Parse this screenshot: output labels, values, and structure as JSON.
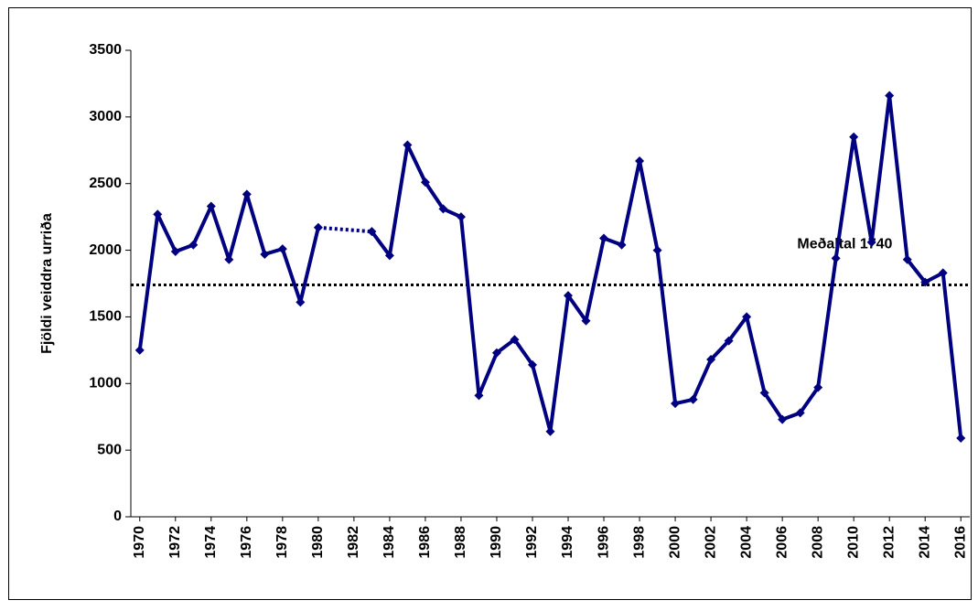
{
  "chart_data": {
    "type": "line",
    "y_label": "Fjöldi veiddra urriða",
    "x": [
      1970,
      1971,
      1972,
      1973,
      1974,
      1975,
      1976,
      1977,
      1978,
      1979,
      1980,
      1981,
      1982,
      1983,
      1984,
      1985,
      1986,
      1987,
      1988,
      1989,
      1990,
      1991,
      1992,
      1993,
      1994,
      1995,
      1996,
      1997,
      1998,
      1999,
      2000,
      2001,
      2002,
      2003,
      2004,
      2005,
      2006,
      2007,
      2008,
      2009,
      2010,
      2011,
      2012,
      2013,
      2014,
      2015,
      2016
    ],
    "series": [
      {
        "color": "#000080",
        "values": [
          1250,
          2270,
          1990,
          2040,
          2330,
          1930,
          2420,
          1970,
          2010,
          1610,
          2170,
          null,
          null,
          2140,
          1960,
          2790,
          2510,
          2310,
          2250,
          910,
          1230,
          1330,
          1140,
          640,
          1660,
          1470,
          2090,
          2040,
          2670,
          2000,
          850,
          880,
          1180,
          1320,
          1500,
          930,
          730,
          780,
          970,
          1940,
          2850,
          2060,
          3160,
          1930,
          1760,
          1830,
          590
        ]
      }
    ],
    "connect_gaps": "dotted",
    "reference_line": {
      "value": 1740,
      "label": "Meðaltal 1740"
    },
    "xlim": [
      1969.5,
      2016.5
    ],
    "xticks": [
      1970,
      1972,
      1974,
      1976,
      1978,
      1980,
      1982,
      1984,
      1986,
      1988,
      1990,
      1992,
      1994,
      1996,
      1998,
      2000,
      2002,
      2004,
      2006,
      2008,
      2010,
      2012,
      2014,
      2016
    ],
    "ylim": [
      0,
      3500
    ],
    "yticks": [
      0,
      500,
      1000,
      1500,
      2000,
      2500,
      3000,
      3500
    ],
    "grid": false
  }
}
